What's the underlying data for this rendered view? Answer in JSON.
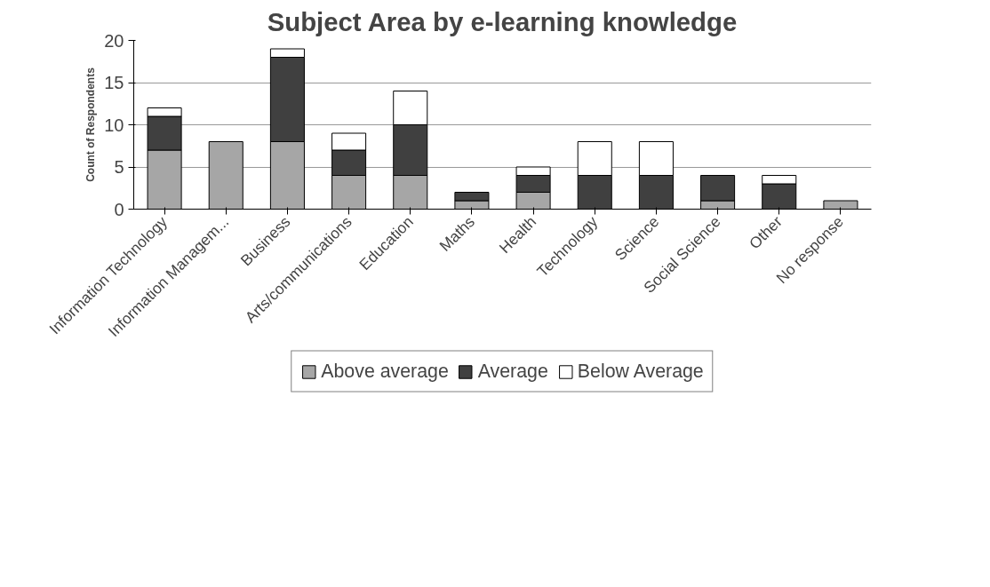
{
  "chart_data": {
    "type": "bar",
    "title": "Subject Area by e-learning knowledge",
    "ylabel": "Count of Respondents",
    "categories": [
      "Information Technology",
      "Information Managem...",
      "Business",
      "Arts/communications",
      "Education",
      "Maths",
      "Health",
      "Technology",
      "Science",
      "Social Science",
      "Other",
      "No response"
    ],
    "stacked": true,
    "series": [
      {
        "name": "Above average",
        "color": "#a6a6a6",
        "values": [
          7,
          8,
          8,
          4,
          4,
          1,
          2,
          0,
          0,
          1,
          0,
          1
        ]
      },
      {
        "name": "Average",
        "color": "#404040",
        "values": [
          4,
          0,
          10,
          3,
          6,
          1,
          2,
          4,
          4,
          3,
          3,
          0
        ]
      },
      {
        "name": "Below Average",
        "color": "#ffffff",
        "values": [
          1,
          0,
          1,
          2,
          4,
          0,
          1,
          4,
          4,
          0,
          1,
          0
        ]
      }
    ],
    "ylim": [
      0,
      20
    ],
    "yticks": [
      0,
      5,
      10,
      15,
      20
    ],
    "grid": "y",
    "legend": "bottom"
  }
}
